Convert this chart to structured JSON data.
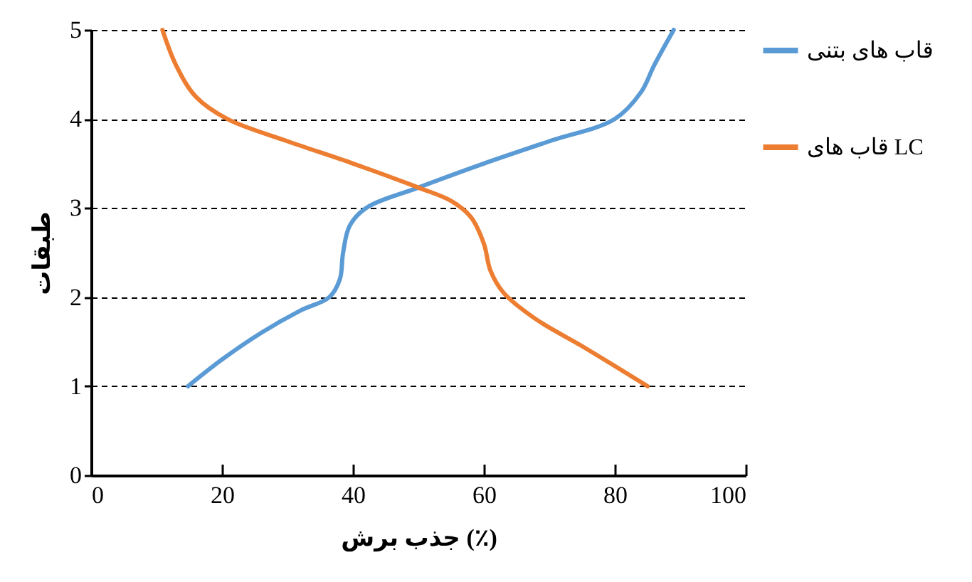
{
  "chart_data": {
    "type": "line",
    "xlabel": "جذب برش (٪)",
    "ylabel": "طبقات",
    "xlim": [
      0,
      100
    ],
    "xticks": [
      0,
      20,
      40,
      60,
      80,
      100
    ],
    "ylim": [
      0,
      5
    ],
    "yticks": [
      0,
      1,
      2,
      3,
      4,
      5
    ],
    "grid": "y",
    "legend": "right",
    "marker": "none",
    "line_style": "solid",
    "series": [
      {
        "name": "قاب های بتنی",
        "color": "#5b9bd5",
        "x": [
          14.8,
          20,
          26,
          32,
          36.4,
          38,
          38.5,
          39.5,
          42,
          50,
          60,
          70,
          80,
          84,
          86,
          89
        ],
        "values": [
          1,
          1.3,
          1.6,
          1.85,
          2,
          2.2,
          2.5,
          2.8,
          3,
          3.23,
          3.5,
          3.75,
          4,
          4.3,
          4.6,
          5
        ]
      },
      {
        "name": "قاب های  LC",
        "color": "#ed7d31",
        "x": [
          10.9,
          13,
          16,
          20.8,
          30,
          40,
          50,
          55,
          58,
          60,
          61,
          63,
          68,
          75,
          85
        ],
        "values": [
          5,
          4.6,
          4.25,
          4,
          3.75,
          3.5,
          3.23,
          3.08,
          2.9,
          2.6,
          2.3,
          2.05,
          1.75,
          1.45,
          1
        ]
      }
    ]
  }
}
